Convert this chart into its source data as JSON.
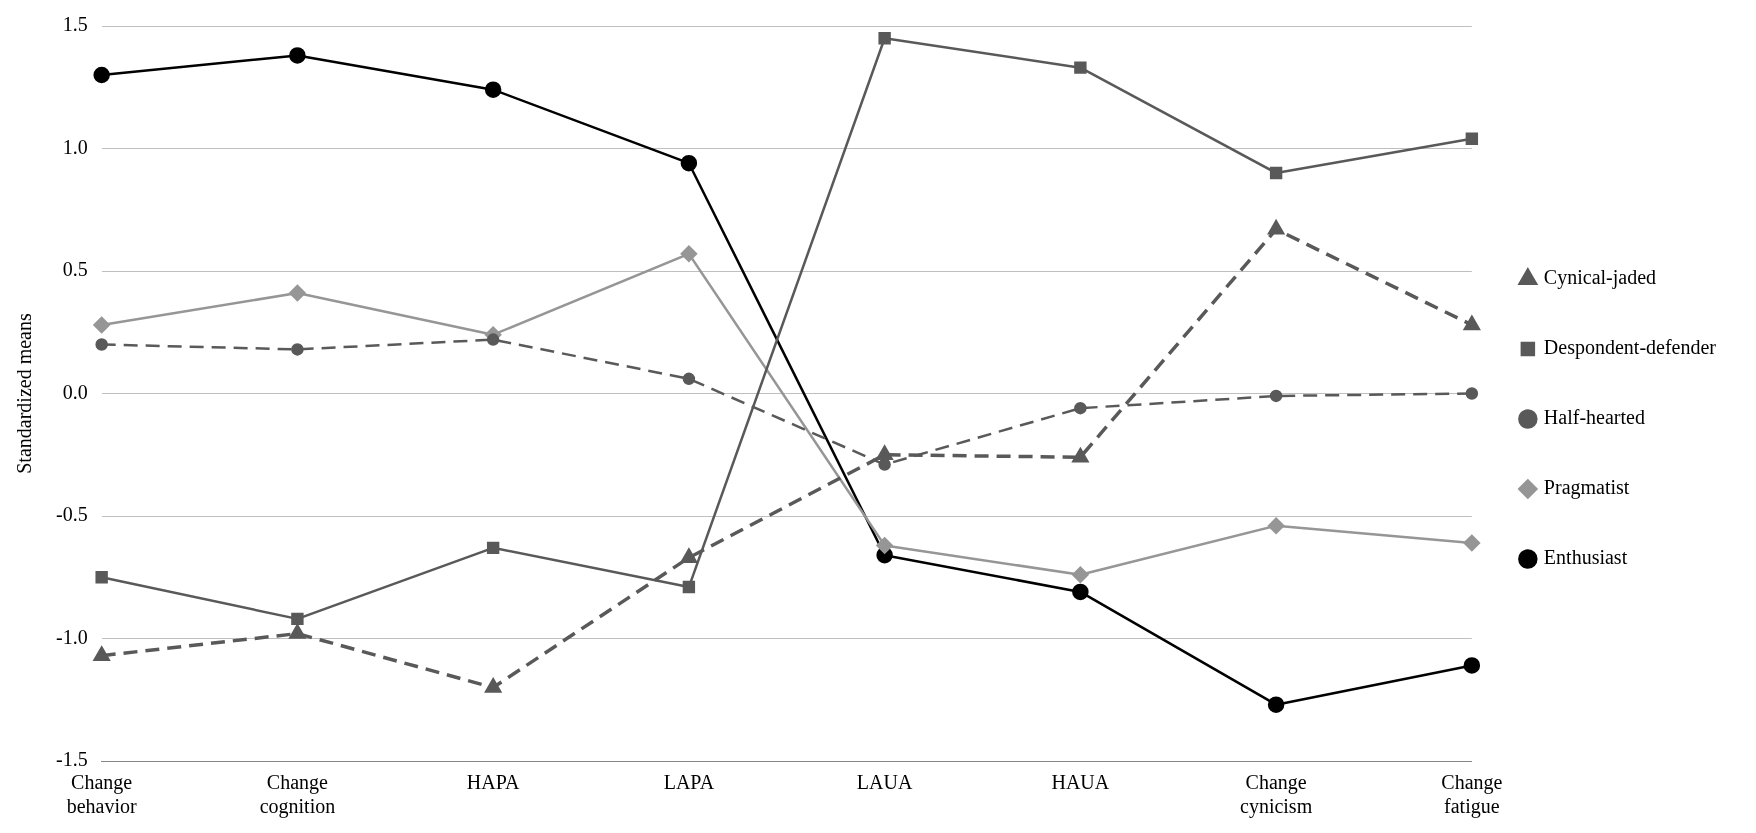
{
  "chart_data": {
    "type": "line",
    "ylabel": "Standardized means",
    "categories": [
      "Change behavior",
      "Change cognition",
      "HAPA",
      "LAPA",
      "LAUA",
      "HAUA",
      "Change cynicism",
      "Change fatigue"
    ],
    "series": [
      {
        "name": "Cynical-jaded",
        "color": "#595959",
        "marker": "triangle",
        "line_style": "dashed",
        "values": [
          -1.07,
          -0.98,
          -1.2,
          -0.67,
          -0.25,
          -0.26,
          0.67,
          0.28
        ]
      },
      {
        "name": "Despondent-defender",
        "color": "#595959",
        "marker": "square",
        "line_style": "solid",
        "values": [
          -0.75,
          -0.92,
          -0.63,
          -0.79,
          1.45,
          1.33,
          0.9,
          1.04
        ]
      },
      {
        "name": "Half-hearted",
        "color": "#595959",
        "marker": "circle",
        "line_style": "dashed",
        "values": [
          0.2,
          0.18,
          0.22,
          0.06,
          -0.29,
          -0.06,
          -0.01,
          0
        ]
      },
      {
        "name": "Pragmatist",
        "color": "#969696",
        "marker": "diamond",
        "line_style": "solid",
        "values": [
          0.28,
          0.41,
          0.24,
          0.57,
          -0.62,
          -0.74,
          -0.54,
          -0.61
        ]
      },
      {
        "name": "Enthusiast",
        "color": "#000000",
        "marker": "circle",
        "line_style": "solid",
        "values": [
          1.3,
          1.38,
          1.24,
          0.94,
          -0.66,
          -0.81,
          -1.27,
          -1.11
        ]
      }
    ],
    "ylim": [
      -1.5,
      1.5
    ],
    "yticks": [
      {
        "value": -1.5,
        "label": "-1.5"
      },
      {
        "value": -1,
        "label": "-1.0"
      },
      {
        "value": -0.5,
        "label": "-0.5"
      },
      {
        "value": 0,
        "label": "0.0"
      },
      {
        "value": 0.5,
        "label": "0.5"
      },
      {
        "value": 1,
        "label": "1.0"
      },
      {
        "value": 1.5,
        "label": "1.5"
      }
    ],
    "grid": "y",
    "legend": "right"
  }
}
